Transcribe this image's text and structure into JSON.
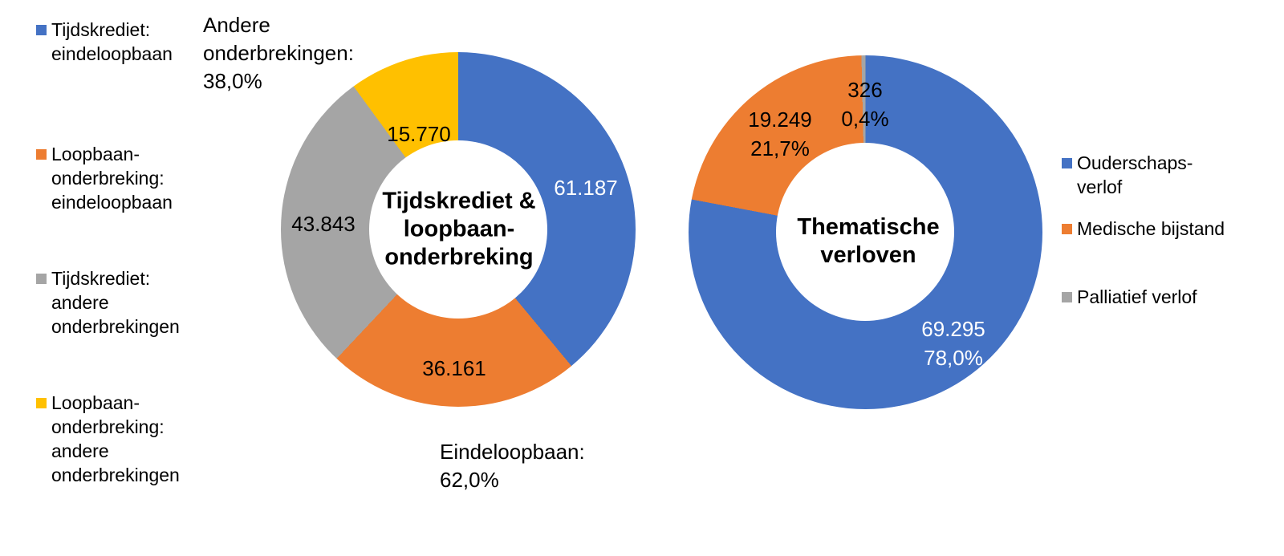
{
  "page": {
    "background": "#ffffff"
  },
  "colors": {
    "blue": "#4472C4",
    "orange": "#ED7D31",
    "gray": "#A5A5A5",
    "yellow": "#FFC000",
    "label_light": "#FFFFFF",
    "label_dark": "#000000"
  },
  "chart_data": [
    {
      "type": "pie",
      "subtype": "donut",
      "center_label": "Tijdskrediet &\nloopbaan-\nonderbreking",
      "start_angle_deg": 0,
      "direction": "clockwise",
      "hole_ratio": 0.5,
      "series": [
        {
          "name": "Tijdskrediet: eindeloopbaan",
          "value": 61187,
          "label": "61.187",
          "color": "#4472C4",
          "label_color": "#FFFFFF"
        },
        {
          "name": "Loopbaan-onderbreking: eindeloopbaan",
          "value": 36161,
          "label": "36.161",
          "color": "#ED7D31",
          "label_color": "#000000"
        },
        {
          "name": "Tijdskrediet: andere onderbrekingen",
          "value": 43843,
          "label": "43.843",
          "color": "#A5A5A5",
          "label_color": "#000000"
        },
        {
          "name": "Loopbaan-onderbreking: andere onderbrekingen",
          "value": 15770,
          "label": "15.770",
          "color": "#FFC000",
          "label_color": "#000000"
        }
      ],
      "annotations": [
        {
          "id": "andere",
          "text": "Andere\nonderbrekingen:\n38,0%"
        },
        {
          "id": "eindeloopbaan",
          "text": "Eindeloopbaan:\n62,0%"
        }
      ]
    },
    {
      "type": "pie",
      "subtype": "donut",
      "center_label": "Thematische\nverloven",
      "start_angle_deg": 0,
      "direction": "clockwise",
      "hole_ratio": 0.5,
      "series": [
        {
          "name": "Ouderschaps-verlof",
          "value": 69295,
          "label": "69.295\n78,0%",
          "color": "#4472C4",
          "label_color": "#FFFFFF"
        },
        {
          "name": "Medische bijstand",
          "value": 19249,
          "label": "19.249\n21,7%",
          "color": "#ED7D31",
          "label_color": "#000000"
        },
        {
          "name": "Palliatief verlof",
          "value": 326,
          "label": "326\n0,4%",
          "color": "#A5A5A5",
          "label_color": "#000000"
        }
      ]
    }
  ],
  "legend_left": {
    "items": [
      {
        "label": "Tijdskrediet:\neindeloopbaan"
      },
      {
        "label": "Loopbaan-\nonderbreking:\neindeloopbaan"
      },
      {
        "label": "Tijdskrediet:\nandere\nonderbrekingen"
      },
      {
        "label": "Loopbaan-\nonderbreking:\nandere\nonderbrekingen"
      }
    ]
  },
  "legend_right": {
    "items": [
      {
        "label": "Ouderschaps-\nverlof"
      },
      {
        "label": "Medische bijstand"
      },
      {
        "label": "Palliatief verlof"
      }
    ]
  }
}
